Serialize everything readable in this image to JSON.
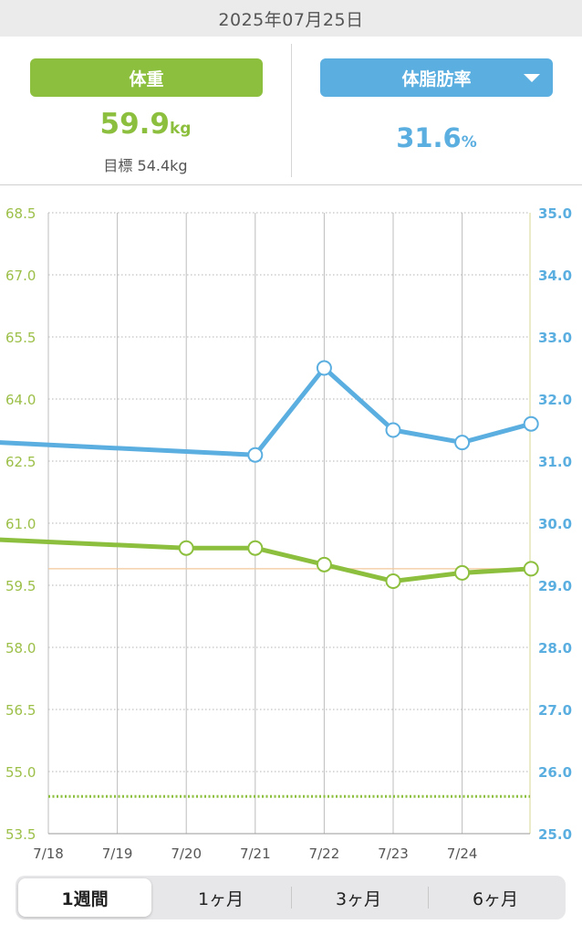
{
  "header": {
    "date": "2025年07月25日"
  },
  "summary": {
    "weight": {
      "label": "体重",
      "value": "59.9",
      "unit": "kg",
      "target_label": "目標",
      "target_value": "54.4kg"
    },
    "fat": {
      "label": "体脂肪率",
      "value": "31.6",
      "unit": "%"
    }
  },
  "tabs": [
    {
      "label": "1週間",
      "active": true
    },
    {
      "label": "1ヶ月",
      "active": false
    },
    {
      "label": "3ヶ月",
      "active": false
    },
    {
      "label": "6ヶ月",
      "active": false
    }
  ],
  "colors": {
    "weight": "#8dbf3e",
    "fat": "#5aaee0",
    "target_line": "#8dbf3e",
    "current_line": "#f2c79a"
  },
  "chart_data": {
    "type": "line",
    "x_labels": [
      "7/18",
      "7/19",
      "7/20",
      "7/21",
      "7/22",
      "7/23",
      "7/24"
    ],
    "left_axis": {
      "ticks": [
        "68.5",
        "67.0",
        "65.5",
        "64.0",
        "62.5",
        "61.0",
        "59.5",
        "58.0",
        "56.5",
        "55.0",
        "53.5"
      ],
      "ylim": [
        53.5,
        68.5
      ]
    },
    "right_axis": {
      "ticks": [
        "35.0",
        "34.0",
        "33.0",
        "32.0",
        "31.0",
        "30.0",
        "29.0",
        "28.0",
        "27.0",
        "26.0",
        "25.0"
      ],
      "ylim": [
        25.0,
        35.0
      ]
    },
    "weight_series": {
      "x": [
        "7/18",
        "7/20",
        "7/21",
        "7/22",
        "7/23",
        "7/24",
        "7/25"
      ],
      "values": [
        60.6,
        60.4,
        60.4,
        60.0,
        59.6,
        59.8,
        59.9
      ]
    },
    "fat_series": {
      "x": [
        "7/18",
        "7/21",
        "7/22",
        "7/23",
        "7/24",
        "7/25"
      ],
      "values": [
        31.3,
        31.1,
        32.5,
        31.5,
        31.3,
        31.6
      ]
    },
    "target_weight": 54.4,
    "current_weight_line": 59.9
  }
}
